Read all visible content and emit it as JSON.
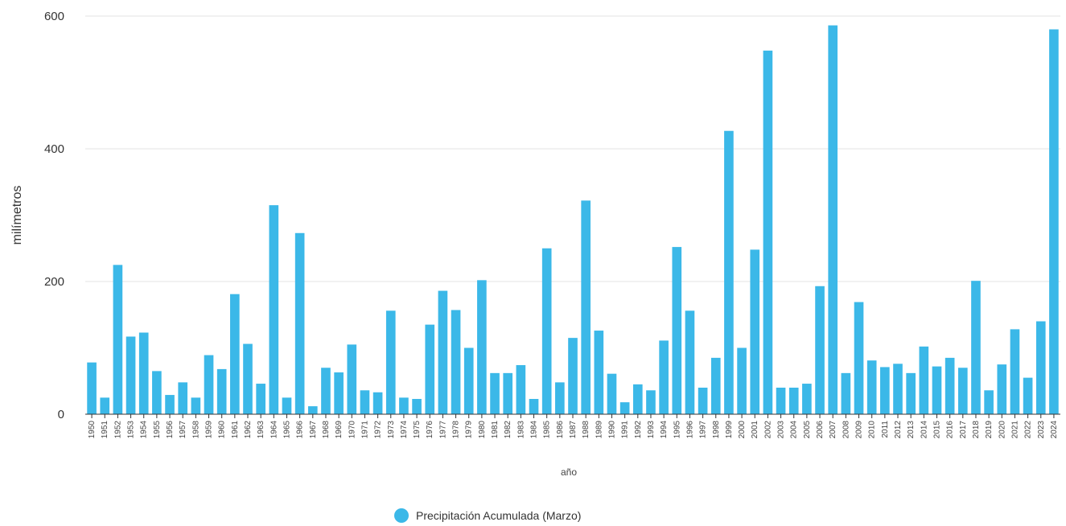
{
  "chart_data": {
    "type": "bar",
    "title": "",
    "xlabel": "año",
    "ylabel": "milímetros",
    "ylim": [
      0,
      600
    ],
    "yticks": [
      0,
      200,
      400,
      600
    ],
    "grid": true,
    "legend_position": "bottom",
    "color": "#3bb8e8",
    "categories": [
      "1950",
      "1951",
      "1952",
      "1953",
      "1954",
      "1955",
      "1956",
      "1957",
      "1958",
      "1959",
      "1960",
      "1961",
      "1962",
      "1963",
      "1964",
      "1965",
      "1966",
      "1967",
      "1968",
      "1969",
      "1970",
      "1971",
      "1972",
      "1973",
      "1974",
      "1975",
      "1976",
      "1977",
      "1978",
      "1979",
      "1980",
      "1981",
      "1982",
      "1983",
      "1984",
      "1985",
      "1986",
      "1987",
      "1988",
      "1989",
      "1990",
      "1991",
      "1992",
      "1993",
      "1994",
      "1995",
      "1996",
      "1997",
      "1998",
      "1999",
      "2000",
      "2001",
      "2002",
      "2003",
      "2004",
      "2005",
      "2006",
      "2007",
      "2008",
      "2009",
      "2010",
      "2011",
      "2012",
      "2013",
      "2014",
      "2015",
      "2016",
      "2017",
      "2018",
      "2019",
      "2020",
      "2021",
      "2022",
      "2023",
      "2024"
    ],
    "series": [
      {
        "name": "Precipitación Acumulada (Marzo)",
        "values": [
          78,
          25,
          225,
          117,
          123,
          65,
          29,
          48,
          25,
          89,
          68,
          181,
          106,
          46,
          315,
          25,
          273,
          12,
          70,
          63,
          105,
          36,
          33,
          156,
          25,
          23,
          135,
          186,
          157,
          100,
          202,
          62,
          62,
          74,
          23,
          250,
          48,
          115,
          322,
          126,
          61,
          18,
          45,
          36,
          111,
          252,
          156,
          40,
          85,
          427,
          100,
          248,
          548,
          40,
          40,
          46,
          193,
          586,
          62,
          169,
          81,
          71,
          76,
          62,
          102,
          72,
          85,
          70,
          201,
          36,
          75,
          128,
          55,
          140,
          580
        ]
      }
    ]
  }
}
